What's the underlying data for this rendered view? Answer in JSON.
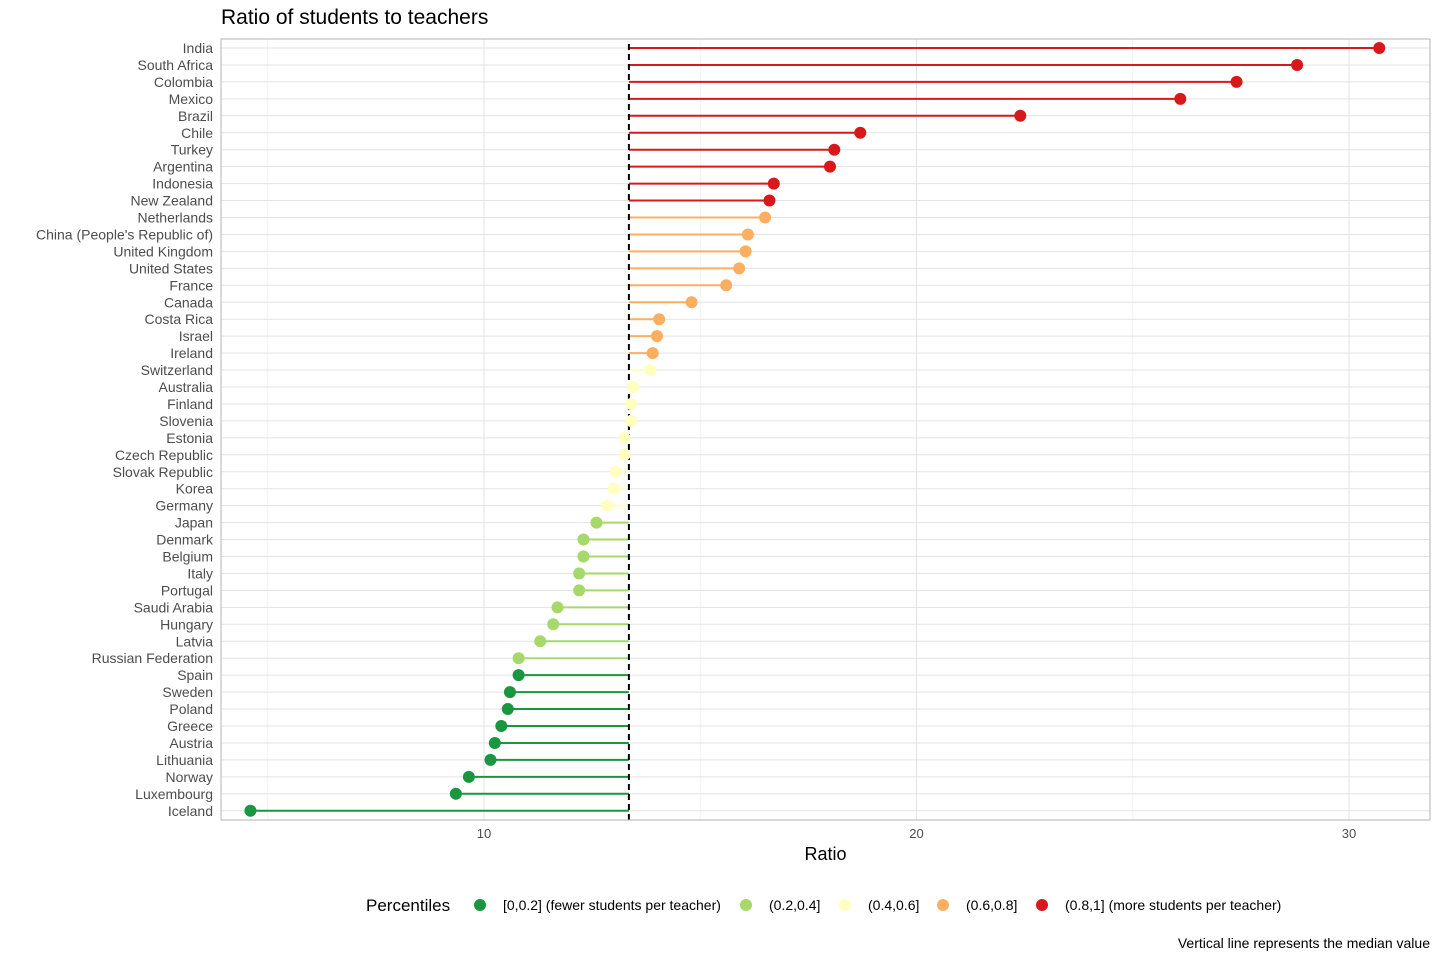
{
  "chart_data": {
    "type": "lollipop",
    "title": "Ratio of students to teachers",
    "xlabel": "Ratio",
    "ylabel": "",
    "xlim": [
      4.2,
      32
    ],
    "x_ticks": [
      10,
      20,
      30
    ],
    "grid": true,
    "median": 13.35,
    "legend": {
      "title": "Percentiles",
      "position": "bottom",
      "items": [
        {
          "label": "[0,0.2] (fewer students per teacher)",
          "color": "#1a9641"
        },
        {
          "label": "(0.2,0.4]",
          "color": "#a6d96a"
        },
        {
          "label": "(0.4,0.6]",
          "color": "#ffffbf"
        },
        {
          "label": "(0.6,0.8]",
          "color": "#fdae61"
        },
        {
          "label": "(0.8,1] (more students per teacher)",
          "color": "#d7191c"
        }
      ]
    },
    "caption": "Vertical line represents the median value",
    "points": [
      {
        "country": "India",
        "value": 30.7,
        "group": 4
      },
      {
        "country": "South Africa",
        "value": 28.8,
        "group": 4
      },
      {
        "country": "Colombia",
        "value": 27.4,
        "group": 4
      },
      {
        "country": "Mexico",
        "value": 26.1,
        "group": 4
      },
      {
        "country": "Brazil",
        "value": 22.4,
        "group": 4
      },
      {
        "country": "Chile",
        "value": 18.7,
        "group": 4
      },
      {
        "country": "Turkey",
        "value": 18.1,
        "group": 4
      },
      {
        "country": "Argentina",
        "value": 18.0,
        "group": 4
      },
      {
        "country": "Indonesia",
        "value": 16.7,
        "group": 4
      },
      {
        "country": "New Zealand",
        "value": 16.6,
        "group": 4
      },
      {
        "country": "Netherlands",
        "value": 16.5,
        "group": 3
      },
      {
        "country": "China (People's Republic of)",
        "value": 16.1,
        "group": 3
      },
      {
        "country": "United Kingdom",
        "value": 16.05,
        "group": 3
      },
      {
        "country": "United States",
        "value": 15.9,
        "group": 3
      },
      {
        "country": "France",
        "value": 15.6,
        "group": 3
      },
      {
        "country": "Canada",
        "value": 14.8,
        "group": 3
      },
      {
        "country": "Costa Rica",
        "value": 14.05,
        "group": 3
      },
      {
        "country": "Israel",
        "value": 14.0,
        "group": 3
      },
      {
        "country": "Ireland",
        "value": 13.9,
        "group": 3
      },
      {
        "country": "Switzerland",
        "value": 13.85,
        "group": 2
      },
      {
        "country": "Australia",
        "value": 13.45,
        "group": 2
      },
      {
        "country": "Finland",
        "value": 13.4,
        "group": 2
      },
      {
        "country": "Slovenia",
        "value": 13.4,
        "group": 2
      },
      {
        "country": "Estonia",
        "value": 13.25,
        "group": 2
      },
      {
        "country": "Czech Republic",
        "value": 13.25,
        "group": 2
      },
      {
        "country": "Slovak Republic",
        "value": 13.05,
        "group": 2
      },
      {
        "country": "Korea",
        "value": 13.0,
        "group": 2
      },
      {
        "country": "Germany",
        "value": 12.85,
        "group": 2
      },
      {
        "country": "Japan",
        "value": 12.6,
        "group": 1
      },
      {
        "country": "Denmark",
        "value": 12.3,
        "group": 1
      },
      {
        "country": "Belgium",
        "value": 12.3,
        "group": 1
      },
      {
        "country": "Italy",
        "value": 12.2,
        "group": 1
      },
      {
        "country": "Portugal",
        "value": 12.2,
        "group": 1
      },
      {
        "country": "Saudi Arabia",
        "value": 11.7,
        "group": 1
      },
      {
        "country": "Hungary",
        "value": 11.6,
        "group": 1
      },
      {
        "country": "Latvia",
        "value": 11.3,
        "group": 1
      },
      {
        "country": "Russian Federation",
        "value": 10.8,
        "group": 1
      },
      {
        "country": "Spain",
        "value": 10.8,
        "group": 0
      },
      {
        "country": "Sweden",
        "value": 10.6,
        "group": 0
      },
      {
        "country": "Poland",
        "value": 10.55,
        "group": 0
      },
      {
        "country": "Greece",
        "value": 10.4,
        "group": 0
      },
      {
        "country": "Austria",
        "value": 10.25,
        "group": 0
      },
      {
        "country": "Lithuania",
        "value": 10.15,
        "group": 0
      },
      {
        "country": "Norway",
        "value": 9.65,
        "group": 0
      },
      {
        "country": "Luxembourg",
        "value": 9.35,
        "group": 0
      },
      {
        "country": "Iceland",
        "value": 4.6,
        "group": 0
      }
    ]
  }
}
